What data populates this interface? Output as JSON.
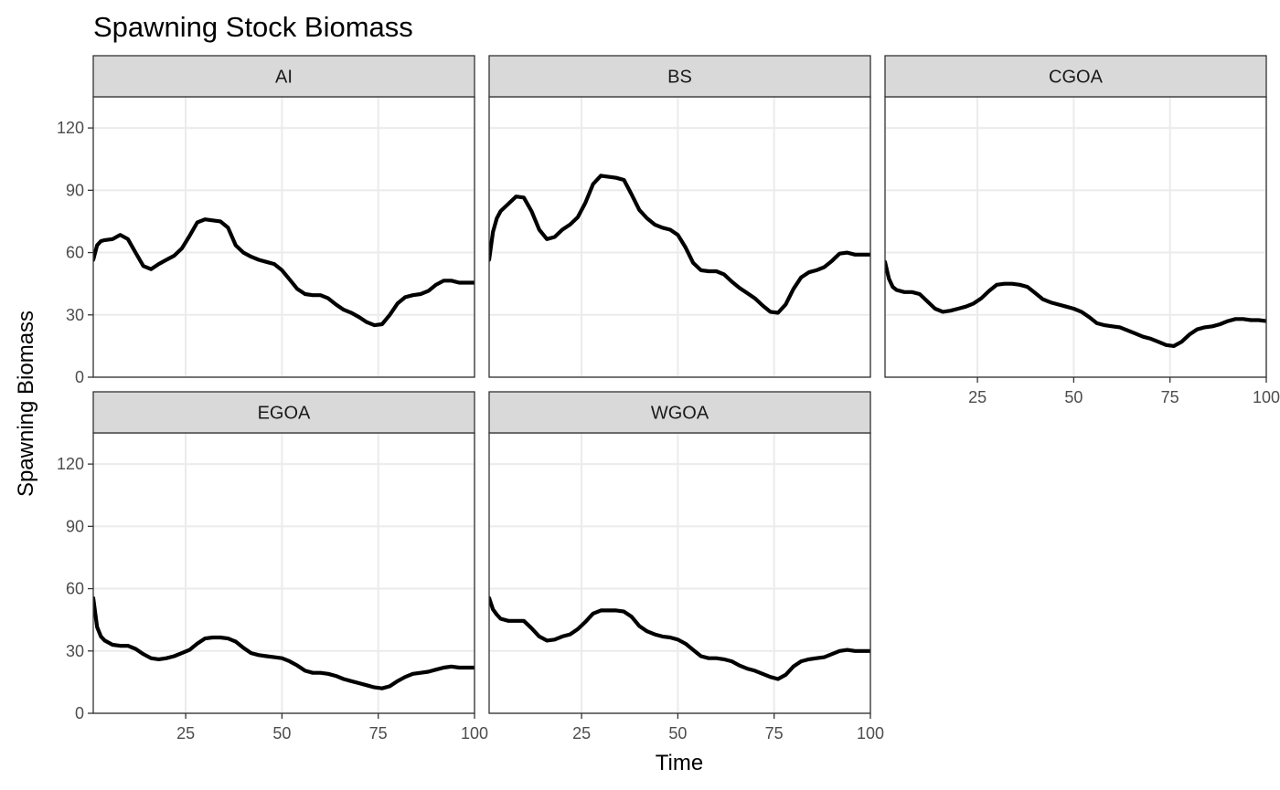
{
  "chart_data": {
    "type": "line",
    "title": "Spawning Stock Biomass",
    "xlabel": "Time",
    "ylabel": "Spawning Biomass",
    "xlim": [
      1,
      100
    ],
    "ylim": [
      0,
      135
    ],
    "x_ticks": [
      25,
      50,
      75,
      100
    ],
    "y_ticks": [
      0,
      30,
      60,
      90,
      120
    ],
    "grid": true,
    "layout": "facet grid, 3 columns x 2 rows",
    "line_color": "#000000",
    "strip_color": "#d9d9d9",
    "x": [
      1,
      2,
      3,
      4,
      6,
      8,
      10,
      12,
      14,
      16,
      18,
      20,
      22,
      24,
      26,
      28,
      30,
      32,
      34,
      36,
      38,
      40,
      42,
      44,
      46,
      48,
      50,
      52,
      54,
      56,
      58,
      60,
      62,
      64,
      66,
      68,
      70,
      72,
      74,
      76,
      78,
      80,
      82,
      84,
      86,
      88,
      90,
      92,
      94,
      96,
      98,
      100
    ],
    "panels": [
      {
        "name": "AI",
        "values": [
          56.5,
          63.5,
          65.5,
          66.0,
          66.5,
          68.5,
          66.5,
          60.0,
          53.5,
          52.0,
          54.5,
          56.5,
          58.5,
          62.0,
          68.0,
          74.5,
          76.0,
          75.5,
          75.0,
          72.0,
          63.5,
          60.0,
          58.0,
          56.5,
          55.5,
          54.5,
          51.5,
          47.0,
          42.5,
          40.0,
          39.5,
          39.5,
          38.0,
          35.0,
          32.5,
          31.0,
          29.0,
          26.5,
          25.0,
          25.5,
          30.0,
          35.5,
          38.5,
          39.5,
          40.0,
          41.5,
          44.5,
          46.5,
          46.5,
          45.5,
          45.5,
          45.5
        ]
      },
      {
        "name": "BS",
        "values": [
          56.5,
          70.0,
          76.5,
          80.0,
          83.5,
          87.0,
          86.5,
          80.0,
          71.0,
          66.5,
          67.5,
          71.0,
          73.5,
          77.0,
          84.0,
          93.0,
          97.0,
          96.5,
          96.0,
          95.0,
          88.0,
          80.5,
          76.5,
          73.5,
          72.0,
          71.0,
          68.5,
          62.5,
          55.0,
          51.5,
          51.0,
          51.0,
          49.5,
          46.0,
          43.0,
          40.5,
          38.0,
          34.5,
          31.5,
          31.0,
          35.0,
          42.5,
          48.0,
          50.5,
          51.5,
          53.0,
          56.0,
          59.5,
          60.0,
          59.0,
          59.0,
          59.0
        ]
      },
      {
        "name": "CGOA",
        "values": [
          55.5,
          47.5,
          43.5,
          42.0,
          41.0,
          41.0,
          40.0,
          36.5,
          33.0,
          31.5,
          32.0,
          33.0,
          34.0,
          35.5,
          38.0,
          41.5,
          44.5,
          45.0,
          45.0,
          44.5,
          43.5,
          40.5,
          37.5,
          36.0,
          35.0,
          34.0,
          33.0,
          31.5,
          29.0,
          26.0,
          25.0,
          24.5,
          24.0,
          22.5,
          21.0,
          19.5,
          18.5,
          17.0,
          15.5,
          15.0,
          17.0,
          20.5,
          23.0,
          24.0,
          24.5,
          25.5,
          27.0,
          28.0,
          28.0,
          27.5,
          27.5,
          27.0
        ]
      },
      {
        "name": "EGOA",
        "values": [
          55.5,
          41.5,
          37.0,
          35.0,
          33.0,
          32.5,
          32.5,
          31.0,
          28.5,
          26.5,
          26.0,
          26.5,
          27.5,
          29.0,
          30.5,
          33.5,
          36.0,
          36.5,
          36.5,
          36.0,
          34.5,
          31.5,
          29.0,
          28.0,
          27.5,
          27.0,
          26.5,
          25.0,
          23.0,
          20.5,
          19.5,
          19.5,
          19.0,
          18.0,
          16.5,
          15.5,
          14.5,
          13.5,
          12.5,
          12.0,
          13.0,
          15.5,
          17.5,
          19.0,
          19.5,
          20.0,
          21.0,
          22.0,
          22.5,
          22.0,
          22.0,
          22.0
        ]
      },
      {
        "name": "WGOA",
        "values": [
          55.5,
          50.0,
          47.5,
          45.5,
          44.5,
          44.5,
          44.5,
          41.0,
          37.0,
          35.0,
          35.5,
          37.0,
          38.0,
          40.5,
          44.0,
          48.0,
          49.5,
          49.5,
          49.5,
          49.0,
          46.5,
          42.0,
          39.5,
          38.0,
          37.0,
          36.5,
          35.5,
          33.5,
          30.5,
          27.5,
          26.5,
          26.5,
          26.0,
          25.0,
          23.0,
          21.5,
          20.5,
          19.0,
          17.5,
          16.5,
          18.5,
          22.5,
          25.0,
          26.0,
          26.5,
          27.0,
          28.5,
          30.0,
          30.5,
          30.0,
          30.0,
          30.0
        ]
      }
    ]
  }
}
